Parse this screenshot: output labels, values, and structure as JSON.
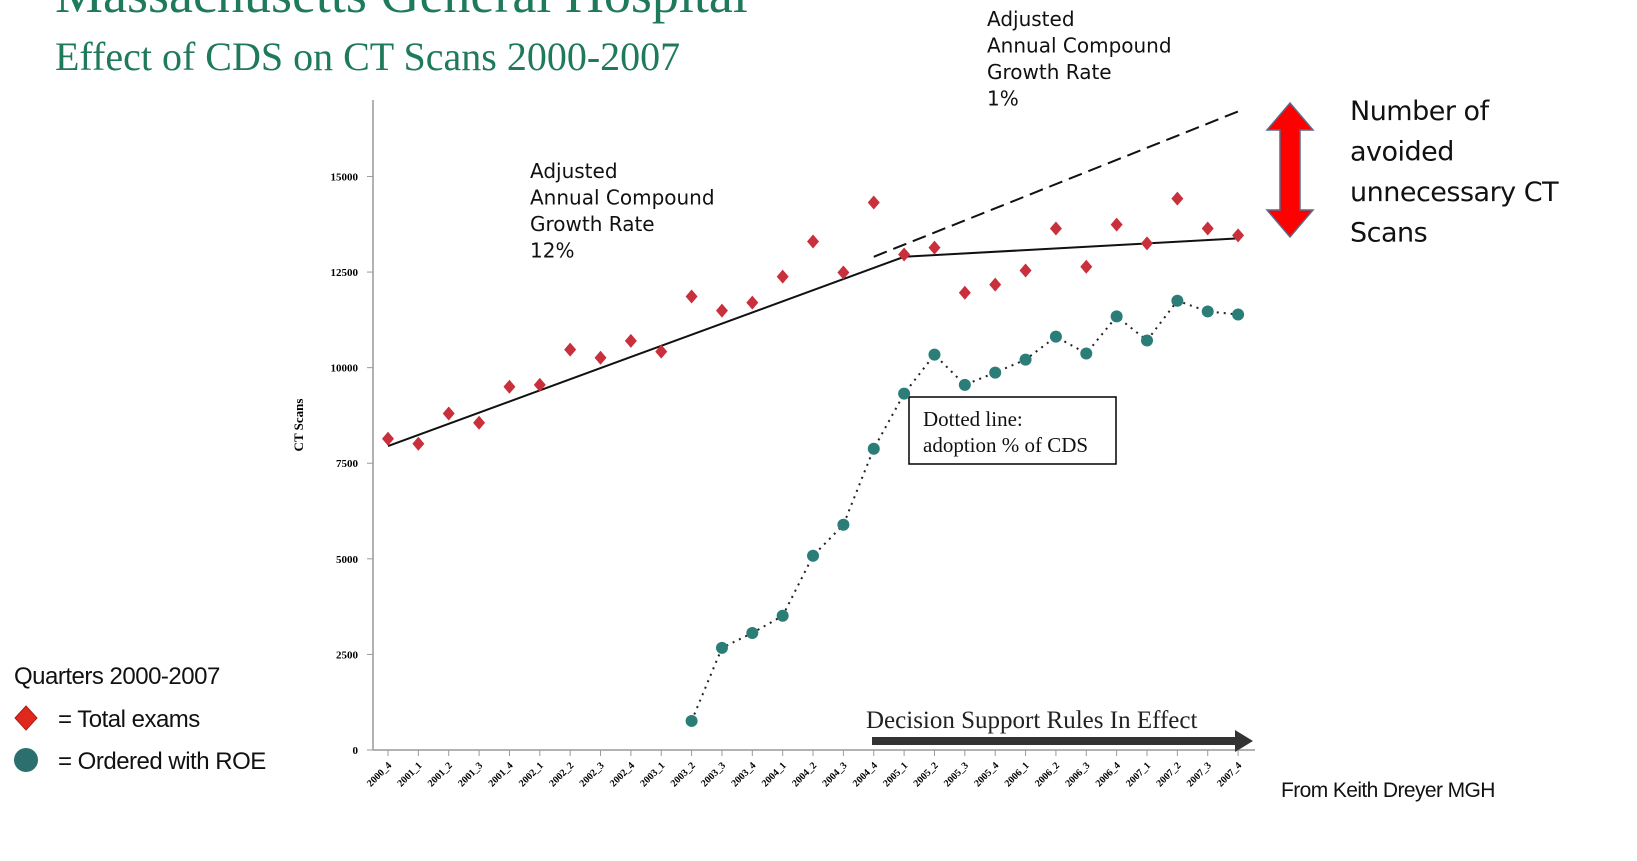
{
  "chart_data": {
    "type": "scatter-line",
    "title": "Massachusetts General Hospital",
    "subtitle": "Effect of CDS on CT Scans 2000-2007",
    "y_label": "CT Scans",
    "categories": [
      "2000_4",
      "2001_1",
      "2001_2",
      "2001_3",
      "2001_4",
      "2002_1",
      "2002_2",
      "2002_3",
      "2002_4",
      "2003_1",
      "2003_2",
      "2003_3",
      "2003_4",
      "2004_1",
      "2004_2",
      "2004_3",
      "2004_4",
      "2005_1",
      "2005_2",
      "2005_3",
      "2005_4",
      "2006_1",
      "2006_2",
      "2006_3",
      "2006_4",
      "2007_1",
      "2007_2",
      "2007_3",
      "2007_4"
    ],
    "ylim": [
      0,
      17000
    ],
    "yticks": [
      0,
      2500,
      5000,
      7500,
      10000,
      12500,
      15000
    ],
    "series": [
      {
        "name": "= Total exams",
        "color": "#c9303c",
        "marker": "diamond",
        "values": [
          8140,
          8010,
          8800,
          8560,
          9500,
          9550,
          10470,
          10260,
          10700,
          10420,
          11860,
          11490,
          11700,
          12380,
          13300,
          12490,
          14320,
          12960,
          13140,
          11960,
          12170,
          12540,
          13640,
          12640,
          13740,
          13250,
          14420,
          13640,
          13460
        ]
      },
      {
        "name": "= Ordered with ROE",
        "color": "#2b7d78",
        "marker": "circle",
        "line": "dotted",
        "values": [
          null,
          null,
          null,
          null,
          null,
          null,
          null,
          null,
          null,
          null,
          760,
          2670,
          3060,
          3510,
          5080,
          5890,
          7880,
          9320,
          10340,
          9550,
          9870,
          10210,
          10810,
          10370,
          11340,
          10710,
          11750,
          11470,
          11390
        ]
      }
    ],
    "trend_lines": [
      {
        "style": "solid",
        "points": [
          [
            0,
            7950
          ],
          [
            17,
            12900
          ],
          [
            28,
            13380
          ]
        ]
      },
      {
        "style": "dashed",
        "points": [
          [
            16,
            12900
          ],
          [
            28,
            16700
          ]
        ]
      }
    ],
    "legend_title": "Quarters 2000-2007",
    "annotations": [
      {
        "lines": [
          "Adjusted",
          "Annual Compound",
          "Growth Rate",
          "12%"
        ]
      },
      {
        "lines": [
          "Adjusted",
          "Annual Compound",
          "Growth Rate",
          "1%"
        ]
      }
    ],
    "avoided_note": [
      "Number of",
      "avoided",
      "unnecessary CT",
      "Scans"
    ],
    "box_note": [
      "Dotted line:",
      "adoption % of CDS"
    ],
    "rules_note": "Decision Support Rules In Effect",
    "source": "From Keith Dreyer MGH"
  }
}
